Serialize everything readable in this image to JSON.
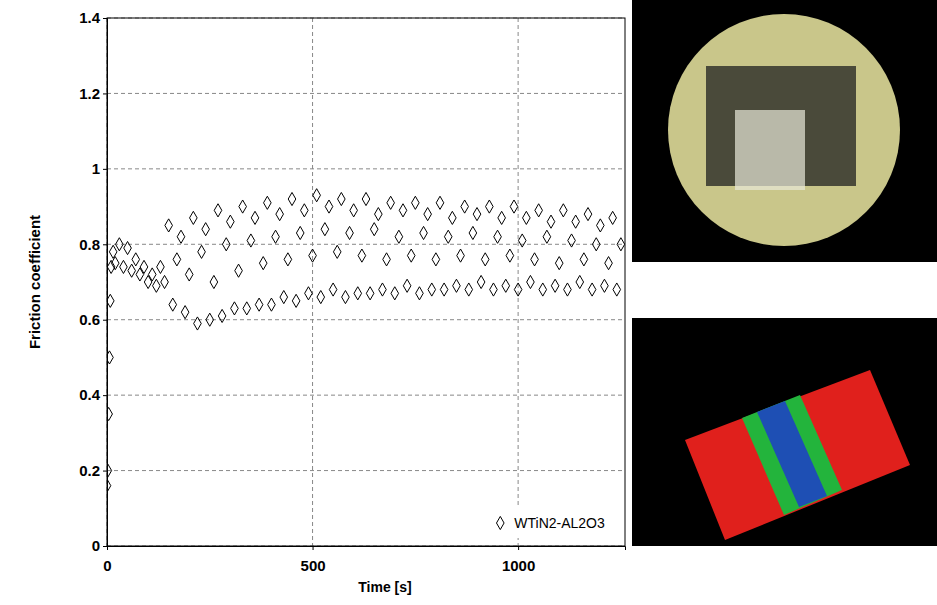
{
  "chart_data": {
    "type": "scatter",
    "x_label": "Time [s]",
    "y_label": "Friction coefficient",
    "x": [
      0,
      2,
      4,
      6,
      8,
      10,
      15,
      20,
      30,
      40,
      50,
      60,
      70,
      80,
      90,
      100,
      110,
      120,
      130,
      140,
      150,
      160,
      170,
      180,
      190,
      200,
      210,
      220,
      230,
      240,
      250,
      260,
      270,
      280,
      290,
      300,
      310,
      320,
      330,
      340,
      350,
      360,
      370,
      380,
      390,
      400,
      410,
      420,
      430,
      440,
      450,
      460,
      470,
      480,
      490,
      500,
      510,
      520,
      530,
      540,
      550,
      560,
      570,
      580,
      590,
      600,
      610,
      620,
      630,
      640,
      650,
      660,
      670,
      680,
      690,
      700,
      710,
      720,
      730,
      740,
      750,
      760,
      770,
      780,
      790,
      800,
      810,
      820,
      830,
      840,
      850,
      860,
      870,
      880,
      890,
      900,
      910,
      920,
      930,
      940,
      950,
      960,
      970,
      980,
      990,
      1000,
      1010,
      1020,
      1030,
      1040,
      1050,
      1060,
      1070,
      1080,
      1090,
      1100,
      1110,
      1120,
      1130,
      1140,
      1150,
      1160,
      1170,
      1180,
      1190,
      1200,
      1210,
      1220,
      1230,
      1240,
      1250
    ],
    "series": [
      {
        "name": "WTiN2-AL2O3",
        "color": "#000000",
        "marker": "diamond",
        "values": [
          0.16,
          0.2,
          0.35,
          0.5,
          0.65,
          0.74,
          0.78,
          0.75,
          0.8,
          0.74,
          0.79,
          0.73,
          0.76,
          0.72,
          0.74,
          0.7,
          0.72,
          0.69,
          0.74,
          0.7,
          0.85,
          0.64,
          0.76,
          0.82,
          0.62,
          0.72,
          0.87,
          0.59,
          0.78,
          0.84,
          0.6,
          0.7,
          0.89,
          0.61,
          0.8,
          0.86,
          0.63,
          0.73,
          0.9,
          0.63,
          0.81,
          0.87,
          0.64,
          0.75,
          0.91,
          0.64,
          0.82,
          0.88,
          0.66,
          0.76,
          0.92,
          0.65,
          0.83,
          0.89,
          0.67,
          0.77,
          0.93,
          0.66,
          0.84,
          0.9,
          0.68,
          0.78,
          0.92,
          0.66,
          0.83,
          0.89,
          0.67,
          0.77,
          0.92,
          0.67,
          0.84,
          0.88,
          0.68,
          0.76,
          0.91,
          0.67,
          0.82,
          0.89,
          0.69,
          0.77,
          0.91,
          0.67,
          0.83,
          0.88,
          0.68,
          0.76,
          0.91,
          0.68,
          0.82,
          0.87,
          0.69,
          0.77,
          0.9,
          0.68,
          0.83,
          0.88,
          0.7,
          0.76,
          0.9,
          0.68,
          0.82,
          0.87,
          0.69,
          0.77,
          0.9,
          0.68,
          0.81,
          0.87,
          0.7,
          0.76,
          0.89,
          0.68,
          0.82,
          0.86,
          0.69,
          0.75,
          0.89,
          0.68,
          0.81,
          0.86,
          0.7,
          0.76,
          0.88,
          0.68,
          0.8,
          0.85,
          0.69,
          0.75,
          0.87,
          0.68,
          0.8
        ]
      }
    ],
    "xlim": [
      0,
      1260
    ],
    "ylim": [
      0,
      1.4
    ],
    "xticks": [
      0,
      500,
      1000
    ],
    "yticks": [
      0,
      0.2,
      0.4,
      0.6,
      0.8,
      1,
      1.2,
      1.4
    ],
    "grid": true,
    "legend": "lower right"
  }
}
